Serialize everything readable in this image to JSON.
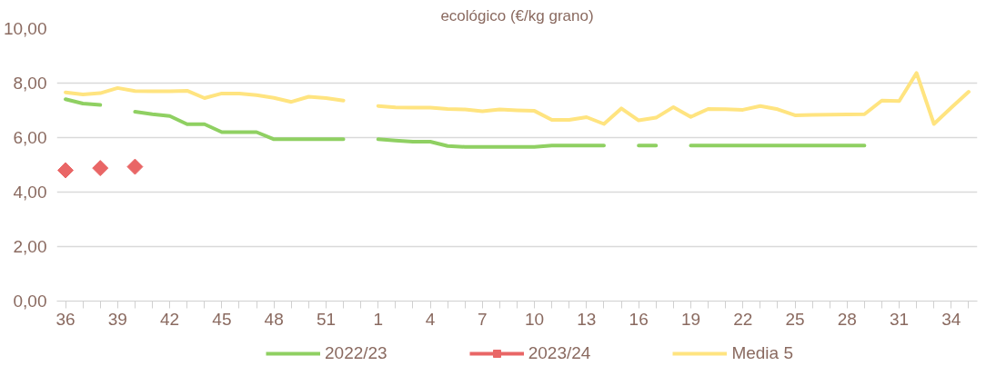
{
  "chart_data": {
    "type": "line",
    "title": "ecológico (€/kg grano)",
    "categories": [
      "36",
      null,
      null,
      "39",
      null,
      null,
      "42",
      null,
      null,
      "45",
      null,
      null,
      "48",
      null,
      null,
      "51",
      null,
      null,
      "1",
      null,
      null,
      "4",
      null,
      null,
      "7",
      null,
      null,
      "10",
      null,
      null,
      "13",
      null,
      null,
      "16",
      null,
      null,
      "19",
      null,
      null,
      "22",
      null,
      null,
      "25",
      null,
      null,
      "28",
      null,
      null,
      "31",
      null,
      null,
      "34",
      null
    ],
    "series": [
      {
        "name": "2022/23",
        "color": "#8fd062",
        "marker": "none",
        "values": [
          7.41,
          7.25,
          7.2,
          null,
          6.95,
          6.86,
          6.79,
          6.49,
          6.49,
          6.2,
          6.2,
          6.2,
          5.94,
          5.94,
          5.94,
          5.94,
          5.94,
          null,
          5.94,
          5.89,
          5.85,
          5.85,
          5.69,
          5.66,
          5.66,
          5.66,
          5.66,
          5.66,
          5.71,
          5.71,
          5.71,
          5.71,
          null,
          5.71,
          5.71,
          null,
          5.71,
          5.71,
          5.71,
          5.71,
          5.71,
          5.71,
          5.71,
          5.71,
          5.71,
          5.71,
          5.71,
          null,
          null,
          null,
          null,
          null,
          null
        ]
      },
      {
        "name": "2023/24",
        "type": "scatter",
        "color": "#e96666",
        "marker": "diamond",
        "values": [
          4.8,
          null,
          4.88,
          null,
          4.93,
          null,
          null,
          null,
          null,
          null,
          null,
          null,
          null,
          null,
          null,
          null,
          null,
          null,
          null,
          null,
          null,
          null,
          null,
          null,
          null,
          null,
          null,
          null,
          null,
          null,
          null,
          null,
          null,
          null,
          null,
          null,
          null,
          null,
          null,
          null,
          null,
          null,
          null,
          null,
          null,
          null,
          null,
          null,
          null,
          null,
          null,
          null,
          null
        ]
      },
      {
        "name": "Media 5",
        "color": "#ffe480",
        "marker": "none",
        "values": [
          7.66,
          7.58,
          7.63,
          7.82,
          7.71,
          7.7,
          7.7,
          7.72,
          7.45,
          7.62,
          7.62,
          7.56,
          7.46,
          7.31,
          7.5,
          7.45,
          7.36,
          null,
          7.16,
          7.11,
          7.1,
          7.1,
          7.05,
          7.03,
          6.97,
          7.03,
          7.0,
          6.98,
          6.65,
          6.65,
          6.75,
          6.5,
          7.07,
          6.63,
          6.73,
          7.12,
          6.76,
          7.05,
          7.04,
          7.02,
          7.16,
          7.04,
          6.82,
          6.83,
          6.84,
          6.85,
          6.86,
          7.36,
          7.34,
          8.37,
          6.5,
          7.1,
          7.68
        ]
      }
    ],
    "ylim": [
      0,
      10
    ],
    "yticks": [
      {
        "value": 0,
        "label": "0,00"
      },
      {
        "value": 2,
        "label": "2,00"
      },
      {
        "value": 4,
        "label": "4,00"
      },
      {
        "value": 6,
        "label": "6,00"
      },
      {
        "value": 8,
        "label": "8,00"
      },
      {
        "value": 10,
        "label": "10,00"
      }
    ],
    "grid": "y",
    "legend": "bottom",
    "line_style": "solid"
  }
}
